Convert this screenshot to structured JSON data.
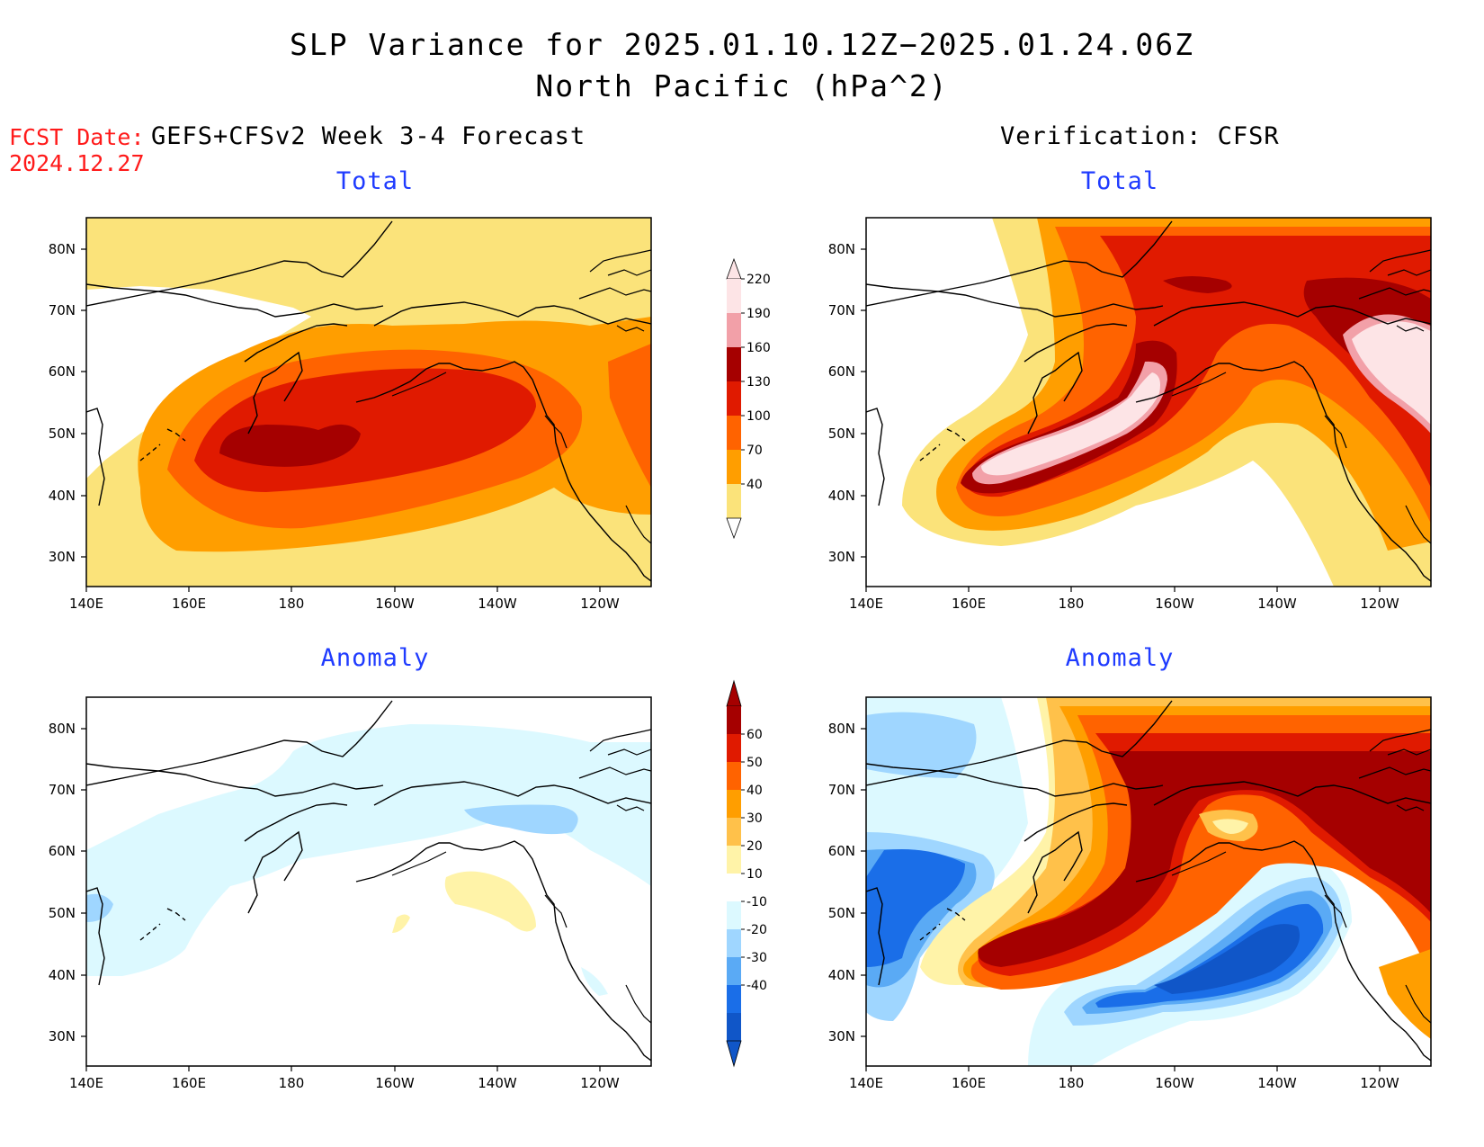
{
  "title": {
    "line1": "SLP Variance for 2025.01.10.12Z−2025.01.24.06Z",
    "line2": "North Pacific (hPa^2)"
  },
  "fcst_date": {
    "label": "FCST Date:",
    "value": "2024.12.27"
  },
  "left_header": "GEFS+CFSv2 Week 3-4 Forecast",
  "right_header": "Verification: CFSR",
  "panels": {
    "fcst_total": {
      "title": "Total"
    },
    "verif_total": {
      "title": "Total"
    },
    "fcst_anomaly": {
      "title": "Anomaly"
    },
    "verif_anomaly": {
      "title": "Anomaly"
    }
  },
  "axes": {
    "lon_ticks": [
      "140E",
      "160E",
      "180",
      "160W",
      "140W",
      "120W"
    ],
    "lat_ticks": [
      "80N",
      "70N",
      "60N",
      "50N",
      "40N",
      "30N"
    ]
  },
  "colorbar_total": {
    "levels": [
      "40",
      "70",
      "100",
      "130",
      "160",
      "190",
      "220"
    ],
    "colors": [
      "#fbe37a",
      "#ff9e00",
      "#ff6300",
      "#e01a00",
      "#a50000",
      "#f2a0a8",
      "#fde4e6"
    ]
  },
  "colorbar_anomaly": {
    "levels": [
      "60",
      "50",
      "40",
      "30",
      "20",
      "10",
      "-10",
      "-20",
      "-30",
      "-40"
    ],
    "colors": [
      "#a50000",
      "#e01a00",
      "#ff6300",
      "#ff9e00",
      "#ffc14a",
      "#fff3a8",
      "#ffffff",
      "#dcf9ff",
      "#9fd6ff",
      "#5aaaf5",
      "#1a6ee8",
      "#1056c8"
    ]
  }
}
